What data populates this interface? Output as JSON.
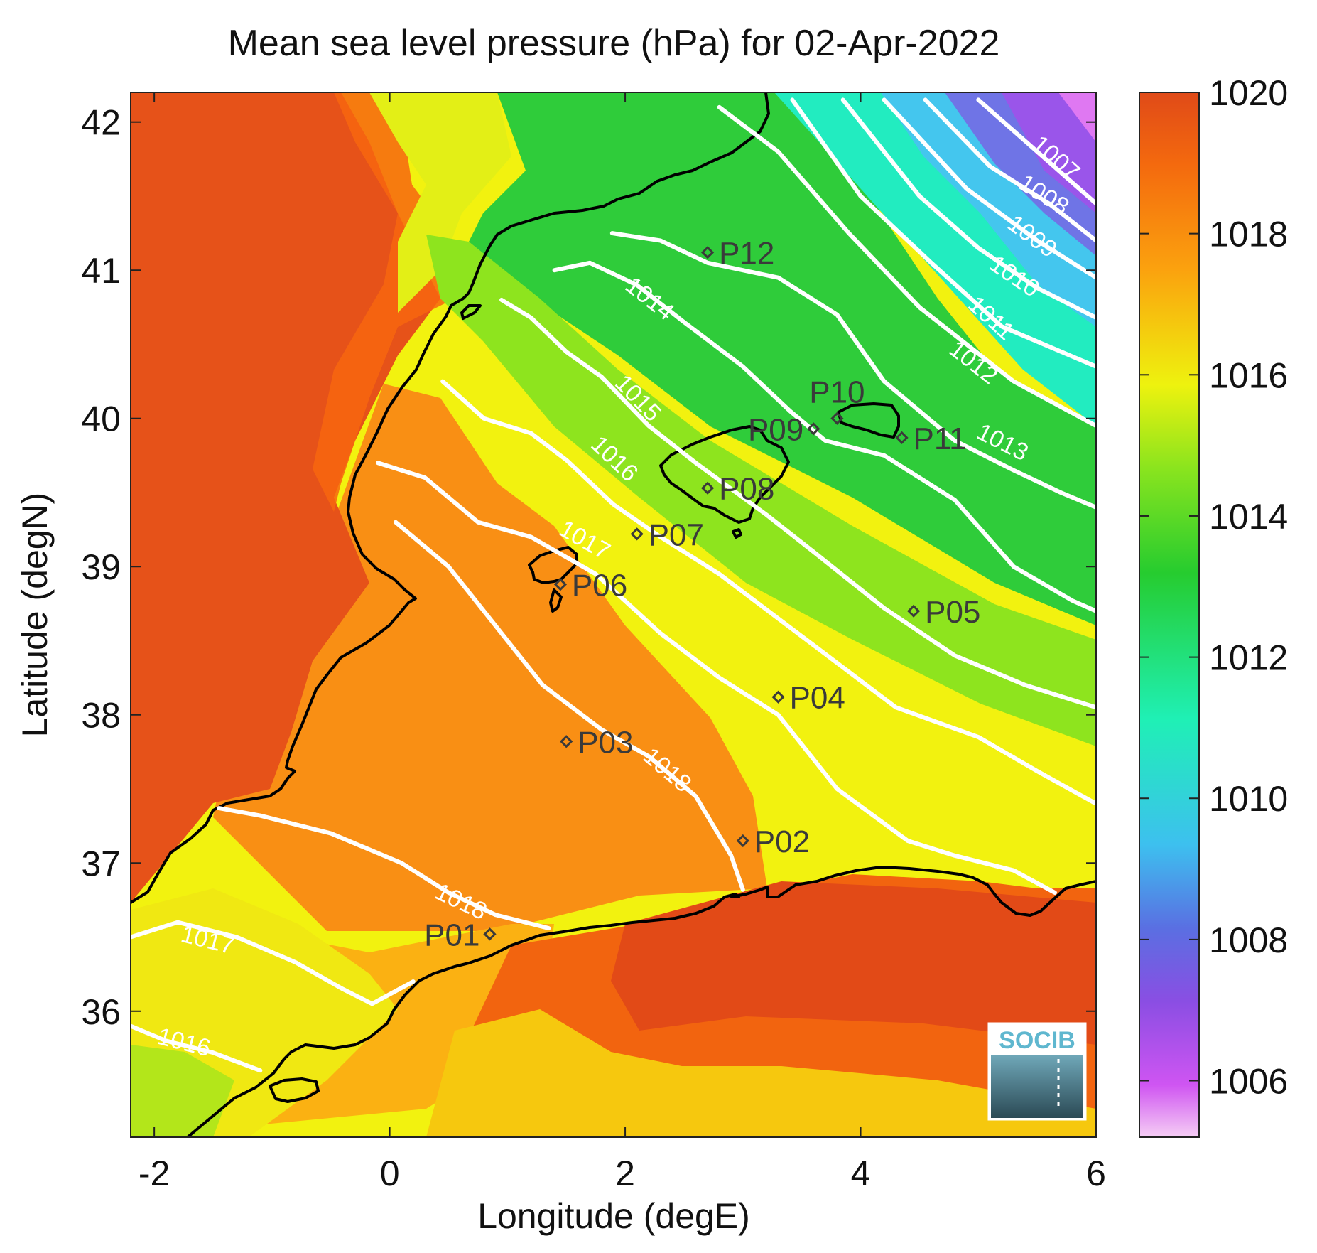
{
  "chart_data": {
    "type": "heatmap",
    "title": "Mean sea level pressure (hPa) for 02-Apr-2022",
    "xlabel": "Longitude (degE)",
    "ylabel": "Latitude (degN)",
    "xlim": [
      -2.2,
      6
    ],
    "ylim": [
      35.15,
      42.2
    ],
    "xticks": [
      -2,
      0,
      2,
      4,
      6
    ],
    "yticks": [
      36,
      37,
      38,
      39,
      40,
      41,
      42
    ],
    "colorbar": {
      "ticks": [
        1006,
        1008,
        1010,
        1012,
        1014,
        1016,
        1018,
        1020
      ],
      "range": [
        1005.2,
        1020
      ]
    },
    "contours": [
      {
        "level": 1007,
        "label": "1007",
        "label_at": [
          5.65,
          41.75
        ],
        "points": [
          [
            5.0,
            42.15
          ],
          [
            5.5,
            41.8
          ],
          [
            6.0,
            41.45
          ]
        ]
      },
      {
        "level": 1008,
        "label": "1008",
        "label_at": [
          5.55,
          41.5
        ],
        "points": [
          [
            4.55,
            42.15
          ],
          [
            5.1,
            41.7
          ],
          [
            5.6,
            41.45
          ],
          [
            6.0,
            41.2
          ]
        ]
      },
      {
        "level": 1009,
        "label": "1009",
        "label_at": [
          5.45,
          41.22
        ],
        "points": [
          [
            4.2,
            42.15
          ],
          [
            4.9,
            41.55
          ],
          [
            5.5,
            41.2
          ],
          [
            6.0,
            40.95
          ]
        ]
      },
      {
        "level": 1010,
        "label": "1010",
        "label_at": [
          5.3,
          40.95
        ],
        "points": [
          [
            3.85,
            42.15
          ],
          [
            4.5,
            41.5
          ],
          [
            5.0,
            41.15
          ],
          [
            5.5,
            40.88
          ],
          [
            6.0,
            40.68
          ]
        ]
      },
      {
        "level": 1011,
        "label": "1011",
        "label_at": [
          5.1,
          40.67
        ],
        "points": [
          [
            3.42,
            42.15
          ],
          [
            4.0,
            41.5
          ],
          [
            4.6,
            41.05
          ],
          [
            5.2,
            40.62
          ],
          [
            6.0,
            40.35
          ]
        ]
      },
      {
        "level": 1012,
        "label": "1012",
        "label_at": [
          4.95,
          40.37
        ],
        "points": [
          [
            2.8,
            42.1
          ],
          [
            3.3,
            41.8
          ],
          [
            3.9,
            41.25
          ],
          [
            4.5,
            40.75
          ],
          [
            5.3,
            40.25
          ],
          [
            6.0,
            39.95
          ]
        ]
      },
      {
        "level": 1013,
        "label": "1013",
        "label_at": [
          5.2,
          39.83
        ],
        "points": [
          [
            1.89,
            41.25
          ],
          [
            2.3,
            41.2
          ],
          [
            2.7,
            41.05
          ],
          [
            3.3,
            40.95
          ],
          [
            3.8,
            40.7
          ],
          [
            4.2,
            40.25
          ],
          [
            4.8,
            39.85
          ],
          [
            5.3,
            39.65
          ],
          [
            5.7,
            39.5
          ],
          [
            6.0,
            39.4
          ]
        ]
      },
      {
        "level": 1014,
        "label": "1014",
        "label_at": [
          2.2,
          40.8
        ],
        "points": [
          [
            1.4,
            41.0
          ],
          [
            1.7,
            41.05
          ],
          [
            2.1,
            40.9
          ],
          [
            2.5,
            40.65
          ],
          [
            3.0,
            40.35
          ],
          [
            3.4,
            40.05
          ],
          [
            3.7,
            39.85
          ],
          [
            4.2,
            39.75
          ],
          [
            4.8,
            39.45
          ],
          [
            5.3,
            39.0
          ],
          [
            5.8,
            38.77
          ],
          [
            6.0,
            38.7
          ]
        ]
      },
      {
        "level": 1015,
        "label": "1015",
        "label_at": [
          2.1,
          40.13
        ],
        "points": [
          [
            0.95,
            40.8
          ],
          [
            1.2,
            40.68
          ],
          [
            1.5,
            40.45
          ],
          [
            1.8,
            40.28
          ],
          [
            2.2,
            39.95
          ],
          [
            2.6,
            39.7
          ],
          [
            3.2,
            39.35
          ],
          [
            3.6,
            39.1
          ],
          [
            4.2,
            38.72
          ],
          [
            4.8,
            38.4
          ],
          [
            5.4,
            38.2
          ],
          [
            6.0,
            38.05
          ]
        ]
      },
      {
        "level": 1016,
        "label": "1016",
        "label_at": [
          1.9,
          39.72
        ],
        "points": [
          [
            0.45,
            40.25
          ],
          [
            0.8,
            40.0
          ],
          [
            1.2,
            39.9
          ],
          [
            1.5,
            39.72
          ],
          [
            1.9,
            39.42
          ],
          [
            2.3,
            39.2
          ],
          [
            2.8,
            38.95
          ],
          [
            3.3,
            38.65
          ],
          [
            3.8,
            38.35
          ],
          [
            4.3,
            38.05
          ],
          [
            5.0,
            37.85
          ],
          [
            5.5,
            37.62
          ],
          [
            6.0,
            37.4
          ]
        ]
      },
      {
        "level": 1017,
        "label": "1017",
        "label_at": [
          1.65,
          39.17
        ],
        "points": [
          [
            -0.1,
            39.7
          ],
          [
            0.3,
            39.6
          ],
          [
            0.75,
            39.3
          ],
          [
            1.2,
            39.2
          ],
          [
            1.75,
            38.95
          ],
          [
            2.3,
            38.55
          ],
          [
            2.8,
            38.25
          ],
          [
            3.3,
            38.0
          ],
          [
            3.8,
            37.5
          ],
          [
            4.4,
            37.15
          ],
          [
            4.8,
            37.05
          ],
          [
            5.3,
            36.95
          ],
          [
            5.65,
            36.8
          ]
        ]
      },
      {
        "level": 1018,
        "label": "1018",
        "label_at": [
          2.35,
          37.62
        ],
        "points": [
          [
            0.05,
            39.3
          ],
          [
            0.5,
            39.0
          ],
          [
            0.9,
            38.6
          ],
          [
            1.3,
            38.2
          ],
          [
            1.8,
            37.9
          ],
          [
            2.2,
            37.72
          ],
          [
            2.6,
            37.45
          ],
          [
            2.9,
            37.05
          ],
          [
            3.0,
            36.82
          ]
        ]
      },
      {
        "level": 1018,
        "label": "1018",
        "label_at": [
          0.6,
          36.73
        ],
        "points": [
          [
            -1.45,
            37.37
          ],
          [
            -1.1,
            37.32
          ],
          [
            -0.5,
            37.2
          ],
          [
            0.1,
            37.0
          ],
          [
            0.5,
            36.8
          ],
          [
            0.9,
            36.65
          ],
          [
            1.35,
            36.56
          ]
        ]
      },
      {
        "level": 1017,
        "label": "1017",
        "label_at": [
          -1.55,
          36.47
        ],
        "points": [
          [
            -2.2,
            36.5
          ],
          [
            -1.8,
            36.6
          ],
          [
            -1.3,
            36.5
          ],
          [
            -0.8,
            36.33
          ],
          [
            -0.4,
            36.15
          ],
          [
            -0.15,
            36.05
          ],
          [
            0.2,
            36.2
          ]
        ]
      },
      {
        "level": 1016,
        "label": "1016",
        "label_at": [
          -1.75,
          35.78
        ],
        "points": [
          [
            -2.2,
            35.9
          ],
          [
            -1.9,
            35.8
          ],
          [
            -1.5,
            35.72
          ],
          [
            -1.1,
            35.6
          ]
        ]
      }
    ],
    "stations": [
      {
        "id": "P01",
        "lon": 0.85,
        "lat": 36.52,
        "label_side": "left"
      },
      {
        "id": "P02",
        "lon": 3.0,
        "lat": 37.15,
        "label_side": "right"
      },
      {
        "id": "P03",
        "lon": 1.5,
        "lat": 37.82,
        "label_side": "right"
      },
      {
        "id": "P04",
        "lon": 3.3,
        "lat": 38.12,
        "label_side": "right"
      },
      {
        "id": "P05",
        "lon": 4.45,
        "lat": 38.7,
        "label_side": "right"
      },
      {
        "id": "P06",
        "lon": 1.45,
        "lat": 38.88,
        "label_side": "right"
      },
      {
        "id": "P07",
        "lon": 2.1,
        "lat": 39.22,
        "label_side": "right"
      },
      {
        "id": "P08",
        "lon": 2.7,
        "lat": 39.53,
        "label_side": "right"
      },
      {
        "id": "P09",
        "lon": 3.6,
        "lat": 39.93,
        "label_side": "left"
      },
      {
        "id": "P10",
        "lon": 3.8,
        "lat": 40.0,
        "label_side": "above"
      },
      {
        "id": "P11",
        "lon": 4.35,
        "lat": 39.87,
        "label_side": "right"
      },
      {
        "id": "P12",
        "lon": 2.7,
        "lat": 41.12,
        "label_side": "right"
      }
    ]
  },
  "logo": {
    "text": "SOCIB"
  }
}
